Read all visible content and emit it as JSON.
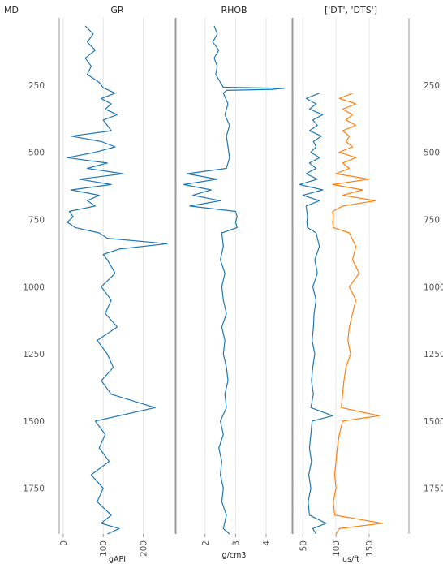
{
  "chart_data": {
    "type": "line",
    "title": "",
    "depth_axis": {
      "label": "MD",
      "range": [
        0,
        1920
      ],
      "ticks": [
        250,
        500,
        750,
        1000,
        1250,
        1500,
        1750
      ],
      "tick_labels": [
        "250",
        "500",
        "750",
        "1000",
        "1250",
        "1500",
        "1750"
      ],
      "inverted": true
    },
    "tracks": [
      {
        "title": "GR",
        "xlabel": "gAPI",
        "xlim": [
          -10,
          280
        ],
        "xticks": [
          0,
          100,
          200
        ],
        "xtick_labels": [
          "0",
          "100",
          "200"
        ],
        "grid": true,
        "series": [
          {
            "name": "GR",
            "color": "#1f77b4",
            "depth": [
              30,
              60,
              90,
              120,
              150,
              180,
              210,
              240,
              260,
              280,
              300,
              320,
              340,
              360,
              380,
              400,
              420,
              440,
              460,
              480,
              500,
              520,
              540,
              560,
              580,
              600,
              620,
              640,
              660,
              680,
              700,
              720,
              740,
              760,
              780,
              800,
              820,
              840,
              860,
              880,
              900,
              950,
              1000,
              1050,
              1100,
              1150,
              1200,
              1250,
              1300,
              1350,
              1400,
              1450,
              1500,
              1550,
              1600,
              1650,
              1700,
              1750,
              1800,
              1850,
              1880,
              1900,
              1920
            ],
            "values": [
              55,
              75,
              60,
              80,
              55,
              70,
              60,
              90,
              100,
              130,
              95,
              120,
              105,
              135,
              100,
              110,
              120,
              20,
              95,
              130,
              80,
              10,
              110,
              60,
              150,
              40,
              120,
              20,
              90,
              60,
              80,
              15,
              25,
              10,
              30,
              90,
              110,
              260,
              140,
              100,
              110,
              130,
              95,
              120,
              105,
              135,
              85,
              110,
              125,
              95,
              120,
              230,
              80,
              105,
              90,
              115,
              70,
              100,
              85,
              120,
              95,
              140,
              110
            ]
          }
        ]
      },
      {
        "title": "RHOB",
        "xlabel": "g/cm3",
        "xlim": [
          1.05,
          4.85
        ],
        "xticks": [
          2,
          3,
          4
        ],
        "xtick_labels": [
          "2",
          "3",
          "4"
        ],
        "grid": true,
        "series": [
          {
            "name": "RHOB",
            "color": "#1f77b4",
            "depth": [
              30,
              60,
              90,
              120,
              150,
              180,
              210,
              240,
              258,
              262,
              266,
              270,
              280,
              320,
              360,
              400,
              440,
              480,
              520,
              560,
              580,
              600,
              620,
              640,
              660,
              680,
              700,
              720,
              740,
              760,
              780,
              800,
              850,
              900,
              950,
              1000,
              1050,
              1100,
              1150,
              1200,
              1250,
              1300,
              1350,
              1400,
              1450,
              1500,
              1550,
              1600,
              1650,
              1700,
              1750,
              1800,
              1850,
              1900,
              1920
            ],
            "values": [
              2.3,
              2.4,
              2.25,
              2.45,
              2.3,
              2.4,
              2.35,
              2.5,
              2.6,
              4.6,
              4.2,
              2.7,
              2.6,
              2.75,
              2.65,
              2.8,
              2.7,
              2.75,
              2.8,
              2.7,
              1.4,
              2.4,
              1.3,
              2.2,
              1.6,
              2.5,
              1.5,
              3.0,
              3.05,
              3.0,
              3.05,
              2.55,
              2.6,
              2.5,
              2.65,
              2.55,
              2.6,
              2.7,
              2.55,
              2.65,
              2.6,
              2.7,
              2.75,
              2.65,
              2.7,
              2.5,
              2.6,
              2.45,
              2.55,
              2.5,
              2.6,
              2.55,
              2.7,
              2.6,
              2.8
            ]
          }
        ]
      },
      {
        "title": "['DT', 'DTS']",
        "xlabel": "us/ft",
        "xlim": [
          35,
          210
        ],
        "xticks": [
          50,
          100,
          150
        ],
        "xtick_labels": [
          "50",
          "100",
          "150"
        ],
        "grid": true,
        "series": [
          {
            "name": "DT",
            "color": "#1f77b4",
            "depth": [
              280,
              300,
              320,
              340,
              360,
              380,
              400,
              420,
              440,
              460,
              480,
              500,
              520,
              540,
              560,
              580,
              600,
              620,
              640,
              660,
              680,
              700,
              720,
              740,
              760,
              780,
              800,
              850,
              900,
              950,
              1000,
              1050,
              1100,
              1150,
              1200,
              1250,
              1300,
              1350,
              1400,
              1450,
              1480,
              1500,
              1550,
              1600,
              1650,
              1700,
              1750,
              1800,
              1850,
              1880,
              1900,
              1920
            ],
            "values": [
              75,
              55,
              70,
              60,
              80,
              65,
              72,
              60,
              78,
              66,
              70,
              62,
              75,
              60,
              70,
              55,
              72,
              45,
              80,
              50,
              75,
              55,
              56,
              57,
              56,
              57,
              70,
              75,
              68,
              72,
              65,
              70,
              67,
              66,
              64,
              68,
              65,
              63,
              66,
              62,
              95,
              64,
              62,
              60,
              63,
              59,
              62,
              58,
              60,
              85,
              65,
              70
            ]
          },
          {
            "name": "DTS",
            "color": "#ff7f0e",
            "depth": [
              280,
              300,
              320,
              340,
              360,
              380,
              400,
              420,
              440,
              460,
              480,
              500,
              520,
              540,
              560,
              580,
              600,
              620,
              640,
              660,
              680,
              700,
              720,
              740,
              760,
              780,
              800,
              850,
              900,
              950,
              1000,
              1050,
              1100,
              1150,
              1200,
              1250,
              1300,
              1350,
              1400,
              1450,
              1480,
              1500,
              1550,
              1600,
              1650,
              1700,
              1750,
              1800,
              1850,
              1880,
              1900,
              1920
            ],
            "values": [
              125,
              105,
              130,
              110,
              125,
              115,
              130,
              110,
              120,
              115,
              125,
              105,
              130,
              110,
              120,
              100,
              150,
              95,
              140,
              110,
              160,
              110,
              95,
              96,
              95,
              96,
              120,
              130,
              125,
              135,
              120,
              130,
              125,
              120,
              118,
              122,
              115,
              112,
              110,
              108,
              165,
              110,
              105,
              102,
              100,
              98,
              100,
              96,
              98,
              170,
              105,
              100
            ]
          }
        ]
      }
    ],
    "right_axis": {
      "ticks": [
        250,
        500,
        750,
        1000,
        1250,
        1500,
        1750
      ],
      "tick_labels": [
        "250",
        "500",
        "750",
        "1000",
        "1250",
        "1500",
        "1750"
      ]
    },
    "colors": {
      "frame": "#999999",
      "grid": "#e6e6e6"
    }
  }
}
